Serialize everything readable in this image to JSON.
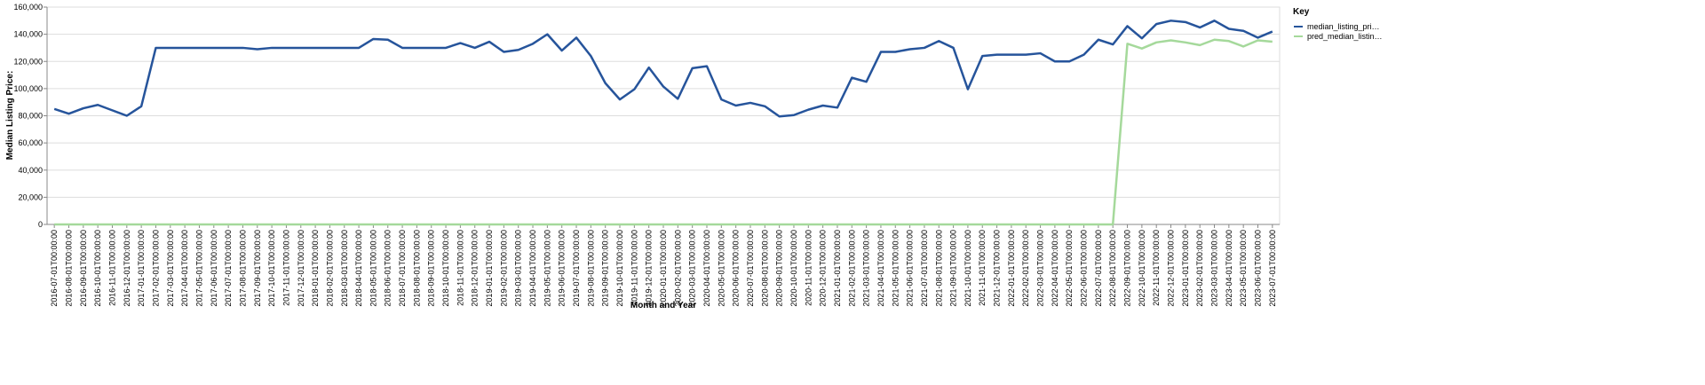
{
  "chart_data": {
    "type": "line",
    "x_label": "Month and Year",
    "y_label": "Median Listing Price:",
    "legend_title": "Key",
    "legend_position": "right",
    "grid": true,
    "categories": [
      "2016-07-01T00:00:00",
      "2016-08-01T00:00:00",
      "2016-09-01T00:00:00",
      "2016-10-01T00:00:00",
      "2016-11-01T00:00:00",
      "2016-12-01T00:00:00",
      "2017-01-01T00:00:00",
      "2017-02-01T00:00:00",
      "2017-03-01T00:00:00",
      "2017-04-01T00:00:00",
      "2017-05-01T00:00:00",
      "2017-06-01T00:00:00",
      "2017-07-01T00:00:00",
      "2017-08-01T00:00:00",
      "2017-09-01T00:00:00",
      "2017-10-01T00:00:00",
      "2017-11-01T00:00:00",
      "2017-12-01T00:00:00",
      "2018-01-01T00:00:00",
      "2018-02-01T00:00:00",
      "2018-03-01T00:00:00",
      "2018-04-01T00:00:00",
      "2018-05-01T00:00:00",
      "2018-06-01T00:00:00",
      "2018-07-01T00:00:00",
      "2018-08-01T00:00:00",
      "2018-09-01T00:00:00",
      "2018-10-01T00:00:00",
      "2018-11-01T00:00:00",
      "2018-12-01T00:00:00",
      "2019-01-01T00:00:00",
      "2019-02-01T00:00:00",
      "2019-03-01T00:00:00",
      "2019-04-01T00:00:00",
      "2019-05-01T00:00:00",
      "2019-06-01T00:00:00",
      "2019-07-01T00:00:00",
      "2019-08-01T00:00:00",
      "2019-09-01T00:00:00",
      "2019-10-01T00:00:00",
      "2019-11-01T00:00:00",
      "2019-12-01T00:00:00",
      "2020-01-01T00:00:00",
      "2020-02-01T00:00:00",
      "2020-03-01T00:00:00",
      "2020-04-01T00:00:00",
      "2020-05-01T00:00:00",
      "2020-06-01T00:00:00",
      "2020-07-01T00:00:00",
      "2020-08-01T00:00:00",
      "2020-09-01T00:00:00",
      "2020-10-01T00:00:00",
      "2020-11-01T00:00:00",
      "2020-12-01T00:00:00",
      "2021-01-01T00:00:00",
      "2021-02-01T00:00:00",
      "2021-03-01T00:00:00",
      "2021-04-01T00:00:00",
      "2021-05-01T00:00:00",
      "2021-06-01T00:00:00",
      "2021-07-01T00:00:00",
      "2021-08-01T00:00:00",
      "2021-09-01T00:00:00",
      "2021-10-01T00:00:00",
      "2021-11-01T00:00:00",
      "2021-12-01T00:00:00",
      "2022-01-01T00:00:00",
      "2022-02-01T00:00:00",
      "2022-03-01T00:00:00",
      "2022-04-01T00:00:00",
      "2022-05-01T00:00:00",
      "2022-06-01T00:00:00",
      "2022-07-01T00:00:00",
      "2022-08-01T00:00:00",
      "2022-09-01T00:00:00",
      "2022-10-01T00:00:00",
      "2022-11-01T00:00:00",
      "2022-12-01T00:00:00",
      "2023-01-01T00:00:00",
      "2023-02-01T00:00:00",
      "2023-03-01T00:00:00",
      "2023-04-01T00:00:00",
      "2023-05-01T00:00:00",
      "2023-06-01T00:00:00",
      "2023-07-01T00:00:00"
    ],
    "series": [
      {
        "name": "median_listing_pri…",
        "color": "#26549b",
        "values": [
          85000,
          81500,
          85500,
          88000,
          84000,
          80000,
          87000,
          130000,
          130000,
          130000,
          130000,
          130000,
          130000,
          130000,
          129000,
          130000,
          130000,
          130000,
          130000,
          130000,
          130000,
          130000,
          136500,
          136000,
          130000,
          130000,
          130000,
          130000,
          133500,
          130000,
          134500,
          127000,
          128500,
          133000,
          140000,
          128000,
          137500,
          124000,
          104000,
          92000,
          99500,
          115500,
          101500,
          92500,
          115000,
          116500,
          92000,
          87500,
          89500,
          87000,
          79500,
          80500,
          84500,
          87500,
          86000,
          108000,
          105000,
          127000,
          127000,
          129000,
          130000,
          135000,
          130000,
          99500,
          124000,
          125000,
          125000,
          125000,
          126000,
          120000,
          120000,
          125000,
          136000,
          132500,
          146000,
          137000,
          147500,
          150000,
          149000,
          145000,
          150000,
          144000,
          142500,
          137500,
          142000
        ]
      },
      {
        "name": "pred_median_listin…",
        "color": "#a5d99b",
        "values": [
          0,
          0,
          0,
          0,
          0,
          0,
          0,
          0,
          0,
          0,
          0,
          0,
          0,
          0,
          0,
          0,
          0,
          0,
          0,
          0,
          0,
          0,
          0,
          0,
          0,
          0,
          0,
          0,
          0,
          0,
          0,
          0,
          0,
          0,
          0,
          0,
          0,
          0,
          0,
          0,
          0,
          0,
          0,
          0,
          0,
          0,
          0,
          0,
          0,
          0,
          0,
          0,
          0,
          0,
          0,
          0,
          0,
          0,
          0,
          0,
          0,
          0,
          0,
          0,
          0,
          0,
          0,
          0,
          0,
          0,
          0,
          0,
          0,
          0,
          133000,
          129500,
          134000,
          135500,
          134000,
          132000,
          136000,
          135000,
          131000,
          135500,
          134500
        ]
      }
    ],
    "ylim": [
      0,
      160000
    ],
    "yticks": [
      0,
      {
        "value": 20000,
        "label": "20,000"
      },
      {
        "value": 40000,
        "label": "40,000"
      },
      {
        "value": 60000,
        "label": "60,000"
      },
      {
        "value": 80000,
        "label": "80,000"
      },
      {
        "value": 100000,
        "label": "100,000"
      },
      {
        "value": 120000,
        "label": "120,000"
      },
      {
        "value": 140000,
        "label": "140,000"
      },
      {
        "value": 160000,
        "label": "160,000"
      }
    ]
  }
}
